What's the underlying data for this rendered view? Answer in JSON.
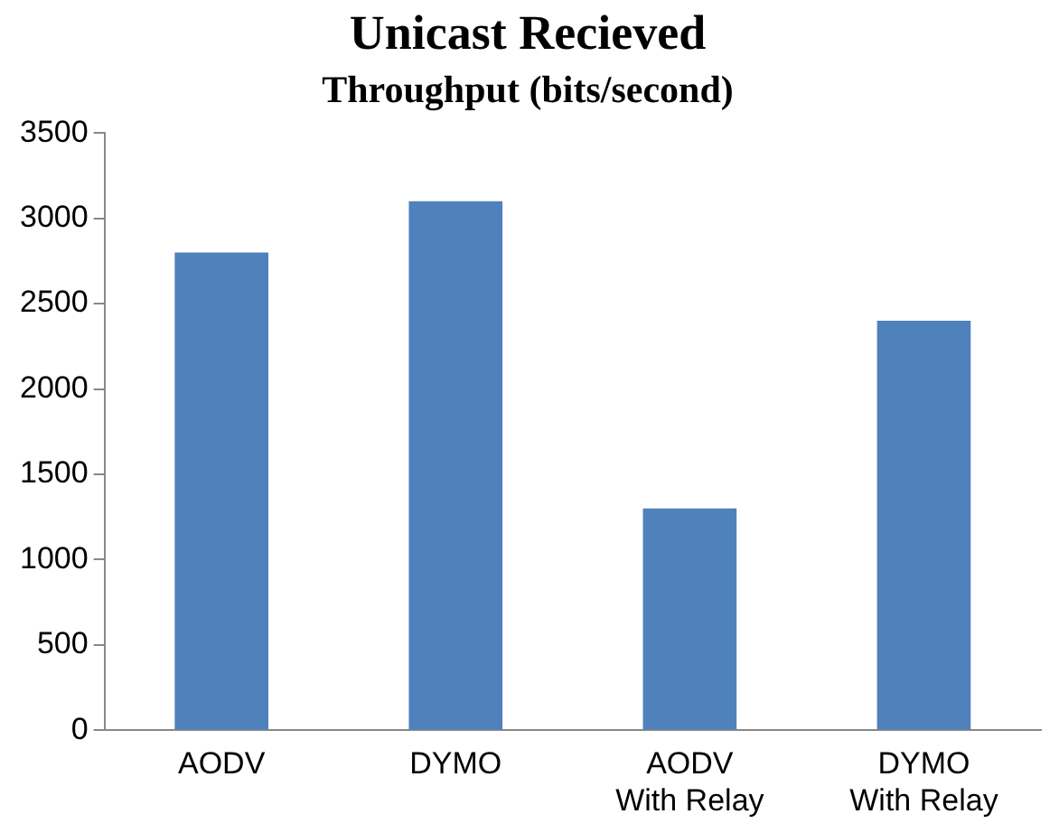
{
  "chart_data": {
    "type": "bar",
    "title": "Unicast Recieved",
    "subtitle": "Throughput (bits/second)",
    "categories": [
      "AODV",
      "DYMO",
      "AODV With Relay",
      "DYMO With Relay"
    ],
    "values": [
      2800,
      3100,
      1300,
      2400
    ],
    "color": "#4f81bd",
    "ylim": [
      0,
      3500
    ],
    "yticks": [
      0,
      500,
      1000,
      1500,
      2000,
      2500,
      3000,
      3500
    ],
    "grid": false,
    "legend": false
  }
}
